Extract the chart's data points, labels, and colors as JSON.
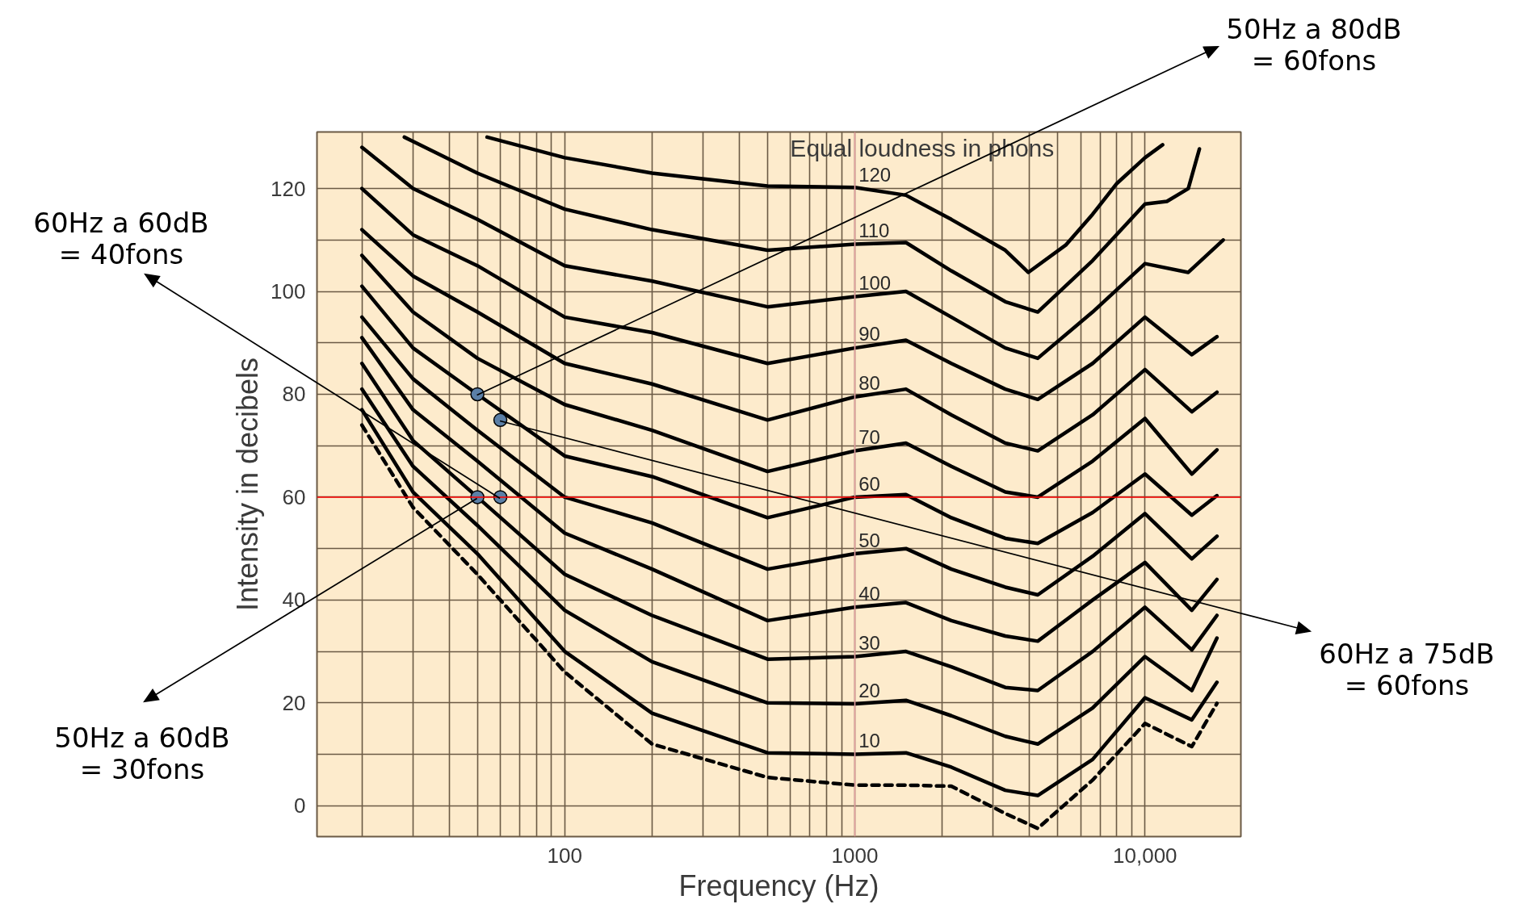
{
  "chart_data": {
    "type": "line",
    "xlabel": "Frequency (Hz)",
    "ylabel": "Intensity in decibels",
    "log": "x",
    "grid": true,
    "legend": false,
    "xlim": [
      14,
      21400
    ],
    "ylim": [
      -6,
      131
    ],
    "xticks": [
      {
        "value": 20,
        "label": null
      },
      {
        "value": 30,
        "label": null
      },
      {
        "value": 40,
        "label": null
      },
      {
        "value": 50,
        "label": null
      },
      {
        "value": 60,
        "label": null
      },
      {
        "value": 70,
        "label": null
      },
      {
        "value": 80,
        "label": null
      },
      {
        "value": 90,
        "label": null
      },
      100,
      {
        "value": 200,
        "label": null
      },
      {
        "value": 300,
        "label": null
      },
      {
        "value": 400,
        "label": null
      },
      {
        "value": 500,
        "label": null
      },
      {
        "value": 600,
        "label": null
      },
      {
        "value": 700,
        "label": null
      },
      {
        "value": 800,
        "label": null
      },
      {
        "value": 900,
        "label": null
      },
      1000,
      {
        "value": 2000,
        "label": null
      },
      {
        "value": 3000,
        "label": null
      },
      {
        "value": 4000,
        "label": null
      },
      {
        "value": 5000,
        "label": null
      },
      {
        "value": 6000,
        "label": null
      },
      {
        "value": 7000,
        "label": null
      },
      {
        "value": 8000,
        "label": null
      },
      {
        "value": 9000,
        "label": null
      },
      {
        "value": 10000,
        "label": "10,000"
      }
    ],
    "yticks": [
      0,
      {
        "value": 10,
        "label": null
      },
      20,
      {
        "value": 30,
        "label": null
      },
      40,
      {
        "value": 50,
        "label": null
      },
      60,
      {
        "value": 70,
        "label": null
      },
      80,
      {
        "value": 90,
        "label": null
      },
      100,
      {
        "value": 110,
        "label": null
      },
      120
    ],
    "ref_lines": [
      {
        "axis": "x",
        "value": 1000,
        "color": "#e7a3a3"
      },
      {
        "axis": "y",
        "value": 60,
        "color": "#ff0000"
      }
    ],
    "series": [
      {
        "color": "#000000",
        "line_style": "dashed",
        "x": [
          20,
          30,
          50,
          100,
          200,
          500,
          1000,
          1500,
          2150,
          3300,
          4270,
          6600,
          10000,
          14500,
          17700
        ],
        "values": [
          74,
          58,
          45,
          26,
          12,
          5.5,
          4,
          4,
          3.8,
          -1.5,
          -4.4,
          5,
          16,
          11.5,
          19.9
        ]
      },
      {
        "name": "10",
        "color": "#000000",
        "x": [
          20,
          30,
          50,
          100,
          200,
          500,
          1000,
          1500,
          2150,
          3300,
          4270,
          6600,
          10000,
          14500,
          17700
        ],
        "values": [
          77,
          61,
          49,
          30,
          18,
          10.3,
          10,
          10.3,
          7.5,
          3,
          2,
          9,
          21,
          16.7,
          24
        ]
      },
      {
        "name": "20",
        "color": "#000000",
        "x": [
          20,
          30,
          50,
          100,
          200,
          500,
          1000,
          1500,
          2150,
          3300,
          4270,
          6600,
          10000,
          14500,
          17700
        ],
        "values": [
          81,
          66,
          54.5,
          38,
          28,
          20,
          19.8,
          20.5,
          17.5,
          13.5,
          12,
          19,
          29,
          22.4,
          32.6
        ]
      },
      {
        "name": "30",
        "color": "#000000",
        "x": [
          20,
          30,
          50,
          100,
          200,
          500,
          1000,
          1500,
          2150,
          3300,
          4270,
          6600,
          10000,
          14500,
          17700
        ],
        "values": [
          86,
          71,
          60,
          45,
          37,
          28.5,
          29,
          30,
          27,
          23,
          22.4,
          30,
          38.6,
          30.3,
          37
        ]
      },
      {
        "name": "40",
        "color": "#000000",
        "x": [
          20,
          30,
          50,
          100,
          200,
          500,
          1000,
          1500,
          2150,
          3300,
          4270,
          6600,
          10000,
          14500,
          17700
        ],
        "values": [
          91,
          77,
          67,
          53,
          46,
          36,
          38.6,
          39.5,
          36,
          33,
          32,
          40,
          47.3,
          38,
          44
        ]
      },
      {
        "name": "50",
        "color": "#000000",
        "x": [
          20,
          30,
          50,
          100,
          200,
          500,
          1000,
          1500,
          2150,
          3300,
          4270,
          6600,
          10000,
          14500,
          17700
        ],
        "values": [
          95,
          83,
          73,
          60,
          55,
          46,
          49,
          50,
          46,
          42.5,
          41,
          48.5,
          56.8,
          48,
          52.4
        ]
      },
      {
        "name": "60",
        "color": "#000000",
        "x": [
          20,
          30,
          50,
          100,
          200,
          500,
          1000,
          1500,
          2150,
          3300,
          4270,
          6600,
          10000,
          14500,
          17700
        ],
        "values": [
          101,
          89,
          80,
          68,
          64,
          56,
          60,
          60.5,
          56,
          52,
          51,
          57,
          64.5,
          56.5,
          60.3
        ]
      },
      {
        "name": "70",
        "color": "#000000",
        "x": [
          20,
          30,
          50,
          100,
          200,
          500,
          1000,
          1500,
          2150,
          3300,
          4270,
          6600,
          10000,
          14500,
          17700
        ],
        "values": [
          107,
          96,
          87,
          78,
          73,
          65,
          69,
          70.5,
          66,
          61,
          60,
          67,
          75.3,
          64.5,
          69.2
        ]
      },
      {
        "name": "80",
        "color": "#000000",
        "x": [
          20,
          30,
          50,
          100,
          200,
          500,
          1000,
          1500,
          2150,
          3300,
          4270,
          6600,
          10000,
          14500,
          17700
        ],
        "values": [
          112,
          103,
          96,
          86,
          82,
          75,
          79.5,
          81,
          76,
          70.5,
          69,
          76,
          84.8,
          76.6,
          80.4
        ]
      },
      {
        "name": "90",
        "color": "#000000",
        "x": [
          20,
          30,
          50,
          100,
          200,
          500,
          1000,
          1500,
          2150,
          3300,
          4270,
          6600,
          10000,
          14500,
          17700
        ],
        "values": [
          120,
          111,
          105,
          95,
          92,
          86,
          89,
          90.5,
          86,
          81,
          79,
          86,
          95,
          87.7,
          91.2
        ]
      },
      {
        "name": "100",
        "color": "#000000",
        "x": [
          20,
          30,
          50,
          100,
          200,
          500,
          1000,
          1500,
          2150,
          3300,
          4270,
          6600,
          10000,
          14100,
          18600
        ],
        "values": [
          128,
          120,
          114,
          105,
          102,
          97,
          99,
          100,
          95,
          89,
          87,
          96,
          105.4,
          103.7,
          110
        ]
      },
      {
        "name": "110",
        "color": "#000000",
        "x": [
          28,
          50,
          100,
          200,
          500,
          1000,
          1500,
          2150,
          3300,
          4270,
          6600,
          10000,
          11900,
          14100,
          15400
        ],
        "values": [
          130,
          123,
          116,
          112,
          108,
          109.2,
          109.5,
          104,
          98,
          96,
          106,
          117,
          117.5,
          120,
          127.7
        ]
      },
      {
        "name": "120",
        "color": "#000000",
        "x": [
          54,
          100,
          200,
          500,
          1000,
          1500,
          2150,
          3300,
          3960,
          5330,
          6600,
          8000,
          10000,
          11500
        ],
        "values": [
          130,
          126,
          123,
          120.5,
          120.2,
          118.7,
          114,
          108,
          103.7,
          109,
          115,
          121,
          126,
          128.5
        ]
      },
      {
        "type": "scatter",
        "marker": "circle",
        "color": "#5b7fa6",
        "x": [
          50,
          60,
          50,
          60
        ],
        "values": [
          80,
          75,
          60,
          60
        ]
      }
    ],
    "annotations": [
      "Equal loudness in phons",
      "50Hz a 80dB\n= 60fons",
      "60Hz a 60dB\n= 40fons",
      "60Hz a 75dB\n= 60fons",
      "50Hz a 60dB\n= 30fons"
    ]
  }
}
